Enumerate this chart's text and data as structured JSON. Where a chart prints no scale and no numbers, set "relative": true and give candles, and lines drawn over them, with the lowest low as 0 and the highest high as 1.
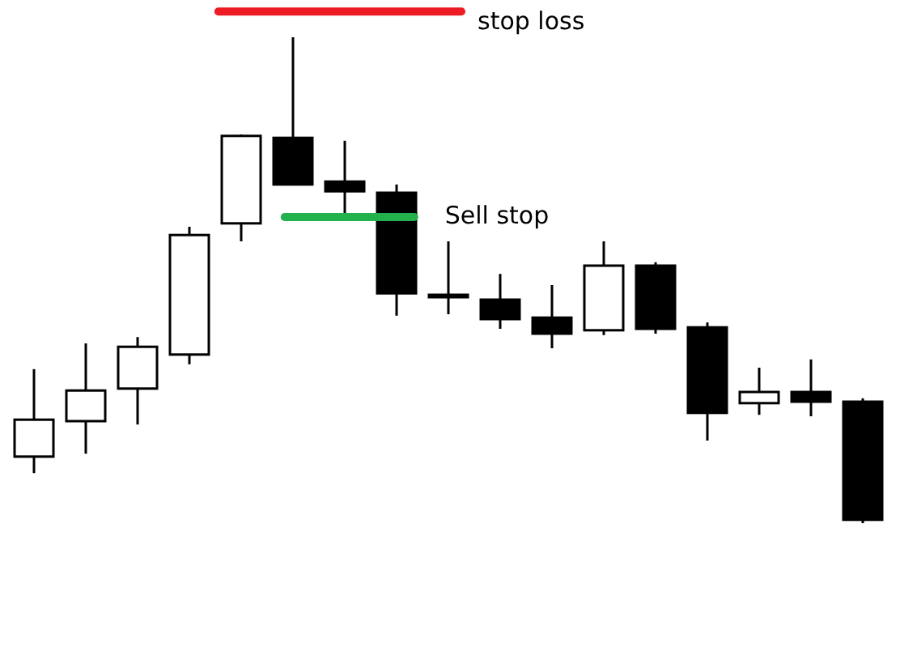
{
  "chart_data": {
    "type": "candlestick",
    "relative": true,
    "categories": [
      null,
      null,
      null,
      null,
      null,
      null,
      null,
      null,
      null,
      null,
      null,
      null,
      null,
      null,
      null,
      null,
      null
    ],
    "ohlc": [
      [
        0.137,
        0.317,
        0.103,
        0.213
      ],
      [
        0.21,
        0.37,
        0.143,
        0.273
      ],
      [
        0.277,
        0.383,
        0.203,
        0.363
      ],
      [
        0.347,
        0.61,
        0.327,
        0.593
      ],
      [
        0.617,
        0.8,
        0.58,
        0.797
      ],
      [
        0.793,
        1,
        0.697,
        0.697
      ],
      [
        0.703,
        0.787,
        0.637,
        0.683
      ],
      [
        0.68,
        0.697,
        0.427,
        0.473
      ],
      [
        0.47,
        0.58,
        0.43,
        0.47
      ],
      [
        0.46,
        0.513,
        0.4,
        0.42
      ],
      [
        0.423,
        0.49,
        0.36,
        0.39
      ],
      [
        0.397,
        0.58,
        0.387,
        0.53
      ],
      [
        0.53,
        0.537,
        0.39,
        0.4
      ],
      [
        0.403,
        0.413,
        0.17,
        0.227
      ],
      [
        0.247,
        0.32,
        0.223,
        0.27
      ],
      [
        0.27,
        0.337,
        0.22,
        0.25
      ],
      [
        0.25,
        0.257,
        0,
        0.007
      ]
    ],
    "ref_lines": [
      {
        "axis": "y",
        "value": 1.053,
        "label": "stop loss",
        "color": "#ed1c24"
      },
      {
        "axis": "y",
        "value": 0.63,
        "label": "Sell stop",
        "color": "#22b14c"
      }
    ]
  }
}
